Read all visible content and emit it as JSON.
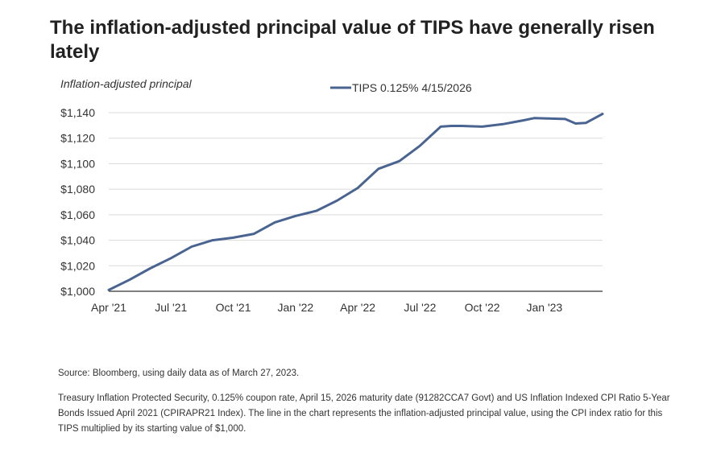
{
  "title": "The inflation-adjusted principal value of TIPS have generally risen lately",
  "chart_data": {
    "type": "line",
    "ylabel": "Inflation-adjusted principal",
    "xlabel": "",
    "ylim": [
      1000,
      1140
    ],
    "yticks": [
      1000,
      1020,
      1040,
      1060,
      1080,
      1100,
      1120,
      1140
    ],
    "ytick_labels": [
      "$1,000",
      "$1,020",
      "$1,040",
      "$1,060",
      "$1,080",
      "$1,100",
      "$1,120",
      "$1,140"
    ],
    "xlim": [
      0,
      23.8
    ],
    "xticks": [
      0,
      3,
      6,
      9,
      12,
      15,
      18,
      21
    ],
    "xtick_labels": [
      "Apr '21",
      "Jul '21",
      "Oct '21",
      "Jan '22",
      "Apr '22",
      "Jul '22",
      "Oct '22",
      "Jan '23"
    ],
    "x_units": "months since April 2021",
    "grid": true,
    "legend_position": "top-center",
    "series": [
      {
        "name": "TIPS 0.125% 4/15/2026",
        "color": "#4a6491",
        "x": [
          0,
          1,
          2,
          3,
          4,
          5,
          6,
          7,
          8,
          9,
          10,
          11,
          12,
          13,
          14,
          15,
          16,
          16.5,
          17,
          18,
          19,
          20,
          20.5,
          21,
          22,
          22.5,
          23,
          23.8
        ],
        "y": [
          1001,
          1009,
          1018,
          1026,
          1035,
          1040,
          1042,
          1045,
          1054,
          1059,
          1063,
          1071,
          1081,
          1096,
          1102,
          1114,
          1129,
          1129.6,
          1129.6,
          1129,
          1131,
          1134,
          1135.7,
          1135.5,
          1135,
          1131.5,
          1132,
          1139
        ]
      }
    ]
  },
  "source": "Source: Bloomberg, using daily data as of March 27, 2023.",
  "footnote": "Treasury Inflation Protected Security, 0.125% coupon rate, April 15, 2026 maturity date (91282CCA7 Govt) and US Inflation Indexed CPI Ratio 5-Year Bonds Issued April 2021 (CPIRAPR21 Index). The line in the chart represents the inflation-adjusted principal value, using the CPI index ratio for this TIPS multiplied by its starting value of $1,000."
}
